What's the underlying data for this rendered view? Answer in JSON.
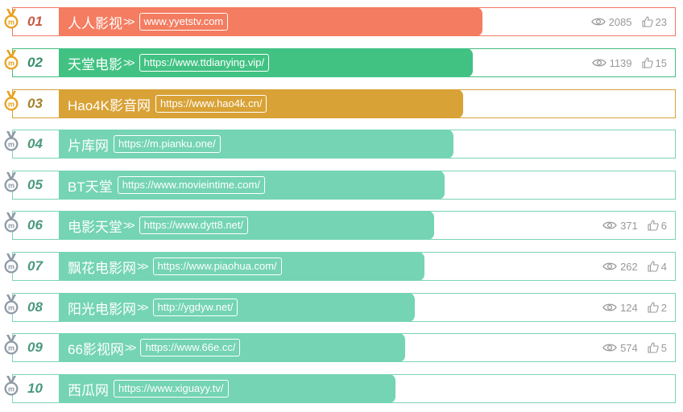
{
  "rows": [
    {
      "rank": "01",
      "name": "人人影视",
      "arrow": ">>",
      "url": "www.yyetstv.com",
      "views": "2085",
      "likes": "23",
      "fill_percent": 70.8,
      "medal": "gold"
    },
    {
      "rank": "02",
      "name": "天堂电影",
      "arrow": ">>",
      "url": "https://www.ttdianying.vip/",
      "views": "1139",
      "likes": "15",
      "fill_percent": 69.3,
      "medal": "gold"
    },
    {
      "rank": "03",
      "name": "Hao4K影音网",
      "arrow": "",
      "url": "https://www.hao4k.cn/",
      "views": "",
      "likes": "",
      "fill_percent": 67.9,
      "medal": "gold"
    },
    {
      "rank": "04",
      "name": "片库网",
      "arrow": "",
      "url": "https://m.pianku.one/",
      "views": "",
      "likes": "",
      "fill_percent": 66.4,
      "medal": "silver"
    },
    {
      "rank": "05",
      "name": "BT天堂",
      "arrow": "",
      "url": "https://www.movieintime.com/",
      "views": "",
      "likes": "",
      "fill_percent": 65.0,
      "medal": "silver"
    },
    {
      "rank": "06",
      "name": "电影天堂",
      "arrow": ">>",
      "url": "https://www.dytt8.net/",
      "views": "371",
      "likes": "6",
      "fill_percent": 63.5,
      "medal": "silver"
    },
    {
      "rank": "07",
      "name": "飘花电影网",
      "arrow": ">>",
      "url": "https://www.piaohua.com/",
      "views": "262",
      "likes": "4",
      "fill_percent": 62.0,
      "medal": "silver"
    },
    {
      "rank": "08",
      "name": "阳光电影网",
      "arrow": ">>",
      "url": "http://ygdyw.net/",
      "views": "124",
      "likes": "2",
      "fill_percent": 60.6,
      "medal": "silver"
    },
    {
      "rank": "09",
      "name": "66影视网",
      "arrow": ">>",
      "url": "https://www.66e.cc/",
      "views": "574",
      "likes": "5",
      "fill_percent": 59.1,
      "medal": "silver"
    },
    {
      "rank": "10",
      "name": "西瓜网",
      "arrow": "",
      "url": "https://www.xiguayy.tv/",
      "views": "",
      "likes": "",
      "fill_percent": 57.7,
      "medal": "silver"
    }
  ],
  "colors": {
    "row1_bar": "#f47c60",
    "row2_bar": "#41c283",
    "row3_bar": "#d9a236",
    "default_bar": "#74d4b4",
    "medal_gold": "#e8a21f",
    "medal_silver": "#8e9aa6",
    "stat_text": "#999999"
  },
  "icons": {
    "views": "eye-icon",
    "likes": "thumbs-up-icon",
    "rank_badge": "medal-icon"
  }
}
